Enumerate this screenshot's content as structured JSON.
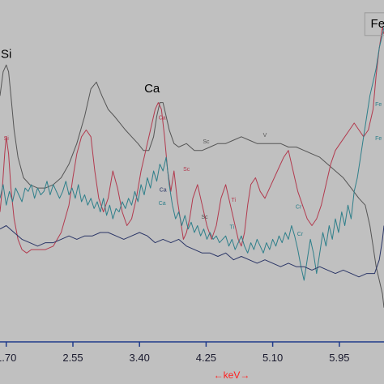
{
  "chart_data": {
    "type": "line",
    "title": "",
    "xlabel": "←keV→",
    "ylabel": "",
    "xlim": [
      1.62,
      6.52
    ],
    "ylim": [
      0,
      100
    ],
    "x_ticks": [
      "1.70",
      "2.55",
      "3.40",
      "4.25",
      "5.10",
      "5.95"
    ],
    "grid": false,
    "colors": {
      "background": "#c0c0c0",
      "axis": "#1f3a8a",
      "series_dark": "#555555",
      "series_red": "#b23a4e",
      "series_teal": "#2e7f8a",
      "series_navy": "#2a3566",
      "label_axis": "#ff2020"
    },
    "element_labels": [
      {
        "text": "Si",
        "x": 1.7,
        "y": 83,
        "size": "large",
        "color": "#000000"
      },
      {
        "text": "Ca",
        "x": 3.56,
        "y": 73,
        "size": "large",
        "color": "#000000"
      },
      {
        "text": "Fe",
        "x": 6.44,
        "y": 92,
        "size": "large",
        "color": "#000000"
      },
      {
        "text": "Si",
        "x": 1.7,
        "y": 59,
        "size": "small",
        "color": "#b23a4e"
      },
      {
        "text": "Ca",
        "x": 3.69,
        "y": 65,
        "size": "small",
        "color": "#b23a4e"
      },
      {
        "text": "Sc",
        "x": 4.0,
        "y": 50,
        "size": "small",
        "color": "#b23a4e"
      },
      {
        "text": "Ca",
        "x": 3.69,
        "y": 40,
        "size": "small",
        "color": "#2e7f8a"
      },
      {
        "text": "Ca",
        "x": 3.7,
        "y": 44,
        "size": "small",
        "color": "#2a3566"
      },
      {
        "text": "Sc",
        "x": 4.25,
        "y": 58,
        "size": "small",
        "color": "#555555"
      },
      {
        "text": "Sc",
        "x": 4.23,
        "y": 36,
        "size": "small",
        "color": "#555555"
      },
      {
        "text": "V",
        "x": 5.0,
        "y": 60,
        "size": "small",
        "color": "#555555"
      },
      {
        "text": "Ti",
        "x": 4.6,
        "y": 41,
        "size": "small",
        "color": "#b23a4e"
      },
      {
        "text": "Ti",
        "x": 4.58,
        "y": 33,
        "size": "small",
        "color": "#2e7f8a"
      },
      {
        "text": "Cr",
        "x": 5.43,
        "y": 39,
        "size": "small",
        "color": "#2e7f8a"
      },
      {
        "text": "Cr",
        "x": 5.45,
        "y": 31,
        "size": "small",
        "color": "#2e7f8a"
      },
      {
        "text": "Fe",
        "x": 6.45,
        "y": 69,
        "size": "small",
        "color": "#2e7f8a"
      },
      {
        "text": "Fe",
        "x": 6.45,
        "y": 59,
        "size": "small",
        "color": "#2e7f8a"
      }
    ],
    "series": [
      {
        "color": "#555555",
        "x": [
          1.62,
          1.66,
          1.7,
          1.73,
          1.76,
          1.8,
          1.85,
          1.92,
          2.0,
          2.1,
          2.2,
          2.3,
          2.4,
          2.5,
          2.6,
          2.7,
          2.78,
          2.85,
          2.92,
          3.0,
          3.08,
          3.15,
          3.22,
          3.3,
          3.38,
          3.45,
          3.52,
          3.58,
          3.62,
          3.66,
          3.7,
          3.74,
          3.78,
          3.84,
          3.9,
          4.0,
          4.1,
          4.2,
          4.3,
          4.4,
          4.5,
          4.6,
          4.7,
          4.8,
          4.9,
          5.0,
          5.1,
          5.2,
          5.3,
          5.4,
          5.5,
          5.6,
          5.7,
          5.8,
          5.9,
          6.0,
          6.1,
          6.2,
          6.28,
          6.34,
          6.38,
          6.42,
          6.46,
          6.5,
          6.52
        ],
        "y": [
          72,
          79,
          81,
          79,
          72,
          62,
          54,
          48,
          46,
          45,
          45,
          46,
          48,
          52,
          58,
          66,
          74,
          76,
          72,
          68,
          66,
          64,
          62,
          60,
          58,
          56,
          56,
          60,
          66,
          70,
          70,
          66,
          62,
          58,
          57,
          58,
          56,
          56,
          57,
          58,
          58,
          59,
          60,
          59,
          58,
          58,
          58,
          58,
          57,
          57,
          56,
          55,
          54,
          52,
          50,
          48,
          45,
          42,
          40,
          34,
          28,
          22,
          18,
          14,
          10
        ]
      },
      {
        "color": "#b23a4e",
        "x": [
          1.62,
          1.65,
          1.68,
          1.7,
          1.73,
          1.76,
          1.8,
          1.85,
          1.9,
          1.96,
          2.02,
          2.1,
          2.2,
          2.3,
          2.4,
          2.5,
          2.55,
          2.6,
          2.66,
          2.72,
          2.78,
          2.83,
          2.88,
          2.94,
          3.0,
          3.06,
          3.12,
          3.18,
          3.24,
          3.3,
          3.36,
          3.42,
          3.48,
          3.54,
          3.6,
          3.64,
          3.68,
          3.72,
          3.76,
          3.8,
          3.84,
          3.88,
          3.92,
          3.96,
          4.0,
          4.04,
          4.08,
          4.14,
          4.2,
          4.26,
          4.32,
          4.38,
          4.44,
          4.5,
          4.56,
          4.62,
          4.66,
          4.7,
          4.74,
          4.78,
          4.82,
          4.88,
          4.94,
          5.0,
          5.08,
          5.16,
          5.24,
          5.3,
          5.36,
          5.42,
          5.48,
          5.54,
          5.6,
          5.66,
          5.72,
          5.78,
          5.84,
          5.9,
          5.96,
          6.02,
          6.08,
          6.14,
          6.2,
          6.26,
          6.32,
          6.38,
          6.42,
          6.46,
          6.5,
          6.52
        ],
        "y": [
          38,
          45,
          55,
          60,
          55,
          45,
          36,
          30,
          27,
          26,
          27,
          27,
          27,
          28,
          32,
          40,
          48,
          55,
          60,
          62,
          60,
          50,
          42,
          38,
          42,
          50,
          45,
          38,
          34,
          36,
          42,
          50,
          56,
          62,
          68,
          70,
          68,
          60,
          50,
          44,
          50,
          42,
          36,
          30,
          32,
          36,
          42,
          46,
          40,
          34,
          30,
          34,
          42,
          46,
          40,
          34,
          30,
          28,
          32,
          40,
          46,
          48,
          44,
          42,
          46,
          50,
          54,
          56,
          50,
          44,
          40,
          36,
          34,
          36,
          40,
          46,
          52,
          56,
          58,
          60,
          62,
          64,
          62,
          60,
          62,
          68,
          78,
          86,
          92,
          90
        ]
      },
      {
        "color": "#2e7f8a",
        "x": [
          1.62,
          1.66,
          1.7,
          1.74,
          1.78,
          1.82,
          1.86,
          1.9,
          1.94,
          1.98,
          2.02,
          2.06,
          2.1,
          2.14,
          2.18,
          2.22,
          2.26,
          2.3,
          2.34,
          2.38,
          2.42,
          2.46,
          2.5,
          2.54,
          2.58,
          2.62,
          2.66,
          2.7,
          2.74,
          2.78,
          2.82,
          2.86,
          2.9,
          2.94,
          2.98,
          3.02,
          3.06,
          3.1,
          3.14,
          3.18,
          3.22,
          3.26,
          3.3,
          3.34,
          3.38,
          3.42,
          3.46,
          3.5,
          3.54,
          3.58,
          3.62,
          3.66,
          3.7,
          3.74,
          3.78,
          3.82,
          3.86,
          3.9,
          3.94,
          3.98,
          4.02,
          4.06,
          4.1,
          4.14,
          4.18,
          4.22,
          4.26,
          4.3,
          4.34,
          4.38,
          4.42,
          4.46,
          4.5,
          4.54,
          4.58,
          4.62,
          4.66,
          4.7,
          4.74,
          4.78,
          4.82,
          4.86,
          4.9,
          4.94,
          4.98,
          5.02,
          5.06,
          5.1,
          5.14,
          5.18,
          5.22,
          5.26,
          5.3,
          5.34,
          5.38,
          5.42,
          5.46,
          5.5,
          5.54,
          5.58,
          5.62,
          5.66,
          5.7,
          5.74,
          5.78,
          5.82,
          5.86,
          5.9,
          5.94,
          5.98,
          6.02,
          6.06,
          6.1,
          6.14,
          6.18,
          6.22,
          6.26,
          6.3,
          6.34,
          6.38,
          6.42,
          6.46,
          6.5,
          6.52
        ],
        "y": [
          42,
          46,
          40,
          44,
          41,
          45,
          43,
          41,
          45,
          44,
          46,
          42,
          45,
          43,
          44,
          47,
          43,
          46,
          44,
          42,
          44,
          47,
          43,
          45,
          42,
          46,
          41,
          43,
          40,
          42,
          39,
          41,
          38,
          42,
          37,
          40,
          36,
          39,
          38,
          41,
          39,
          42,
          40,
          44,
          41,
          46,
          43,
          48,
          45,
          50,
          47,
          52,
          50,
          54,
          46,
          40,
          36,
          38,
          34,
          37,
          33,
          35,
          32,
          34,
          31,
          33,
          30,
          32,
          30,
          31,
          29,
          30,
          31,
          28,
          30,
          27,
          29,
          31,
          28,
          26,
          29,
          27,
          30,
          28,
          26,
          29,
          27,
          30,
          28,
          31,
          29,
          32,
          30,
          34,
          31,
          27,
          22,
          18,
          24,
          30,
          26,
          20,
          26,
          32,
          28,
          34,
          30,
          36,
          32,
          38,
          34,
          40,
          36,
          44,
          48,
          54,
          60,
          66,
          72,
          76,
          80,
          86,
          90,
          92
        ]
      },
      {
        "color": "#2a3566",
        "x": [
          1.62,
          1.7,
          1.8,
          1.9,
          2.0,
          2.1,
          2.2,
          2.3,
          2.4,
          2.5,
          2.6,
          2.7,
          2.8,
          2.9,
          3.0,
          3.1,
          3.2,
          3.3,
          3.4,
          3.5,
          3.6,
          3.7,
          3.8,
          3.9,
          4.0,
          4.1,
          4.2,
          4.3,
          4.4,
          4.5,
          4.6,
          4.7,
          4.8,
          4.9,
          5.0,
          5.1,
          5.2,
          5.3,
          5.4,
          5.5,
          5.6,
          5.7,
          5.8,
          5.9,
          6.0,
          6.1,
          6.2,
          6.3,
          6.4,
          6.46,
          6.5,
          6.52
        ],
        "y": [
          33,
          34,
          32,
          30,
          29,
          28,
          29,
          29,
          30,
          31,
          30,
          31,
          31,
          32,
          32,
          31,
          30,
          31,
          32,
          31,
          29,
          30,
          29,
          30,
          28,
          27,
          26,
          26,
          25,
          26,
          24,
          25,
          24,
          23,
          24,
          23,
          22,
          23,
          22,
          22,
          21,
          22,
          21,
          20,
          21,
          20,
          19,
          20,
          20,
          24,
          30,
          34
        ]
      }
    ]
  }
}
